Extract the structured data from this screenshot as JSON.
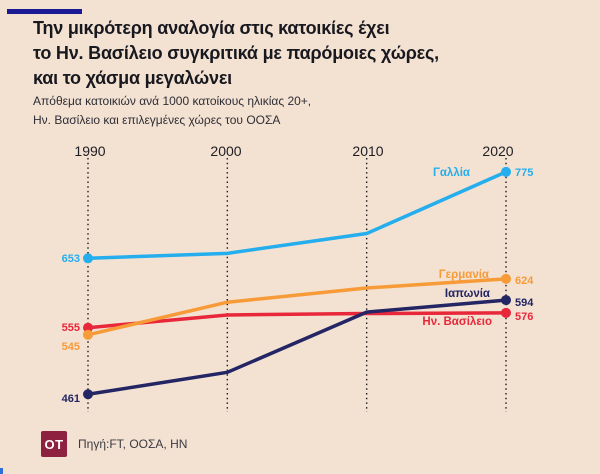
{
  "header": {
    "title_lines": [
      "Την μικρότερη αναλογία στις κατοικίες έχει",
      "το Ην. Βασίλειο συγκριτικά με παρόμοιες χώρες,",
      "και το χάσμα μεγαλώνει"
    ],
    "subtitle_lines": [
      "Απόθεμα κατοικιών ανά 1000 κατοίκους ηλικίας 20+,",
      "Ην.  Βασίλειο και επιλεγμένες χώρες του ΟΟΣΑ"
    ]
  },
  "chart_data": {
    "type": "line",
    "title": "Την μικρότερη αναλογία στις κατοικίες έχει το Ην. Βασίλειο συγκριτικά με παρόμοιες χώρες, και το χάσμα μεγαλώνει",
    "subtitle": "Απόθεμα κατοικιών ανά 1000 κατοίκους ηλικίας 20+, Ην. Βασίλειο και επιλεγμένες χώρες του ΟΟΣΑ",
    "x": [
      1990,
      2000,
      2010,
      2020
    ],
    "series": [
      {
        "name": "Γαλλία",
        "color": "#24aeee",
        "values": [
          653,
          660,
          688,
          775
        ]
      },
      {
        "name": "Γερμανία",
        "color": "#f79b38",
        "values": [
          545,
          591,
          611,
          624
        ]
      },
      {
        "name": "Ιαπωνία",
        "color": "#232564",
        "values": [
          461,
          492,
          577,
          594
        ]
      },
      {
        "name": "Ην. Βασίλειο",
        "color": "#e8283a",
        "values": [
          555,
          573,
          575,
          576
        ]
      }
    ],
    "value_labels_shown": "endpoints_only",
    "note": "intermediate values (2000, 2010) estimated from line positions",
    "grid": "vertical-dotted",
    "legend": "inline-series-labels",
    "y_axis_visible": false
  },
  "footer": {
    "logo_text": "OT",
    "source": "Πηγή:FT, ΟΟΣΑ, HN"
  },
  "colors": {
    "background": "#f3e1d2",
    "accent_bar": "#1a1a94",
    "title_text": "#18181f",
    "gridline": "#1e1e1e",
    "logo_background": "#8e2140"
  }
}
